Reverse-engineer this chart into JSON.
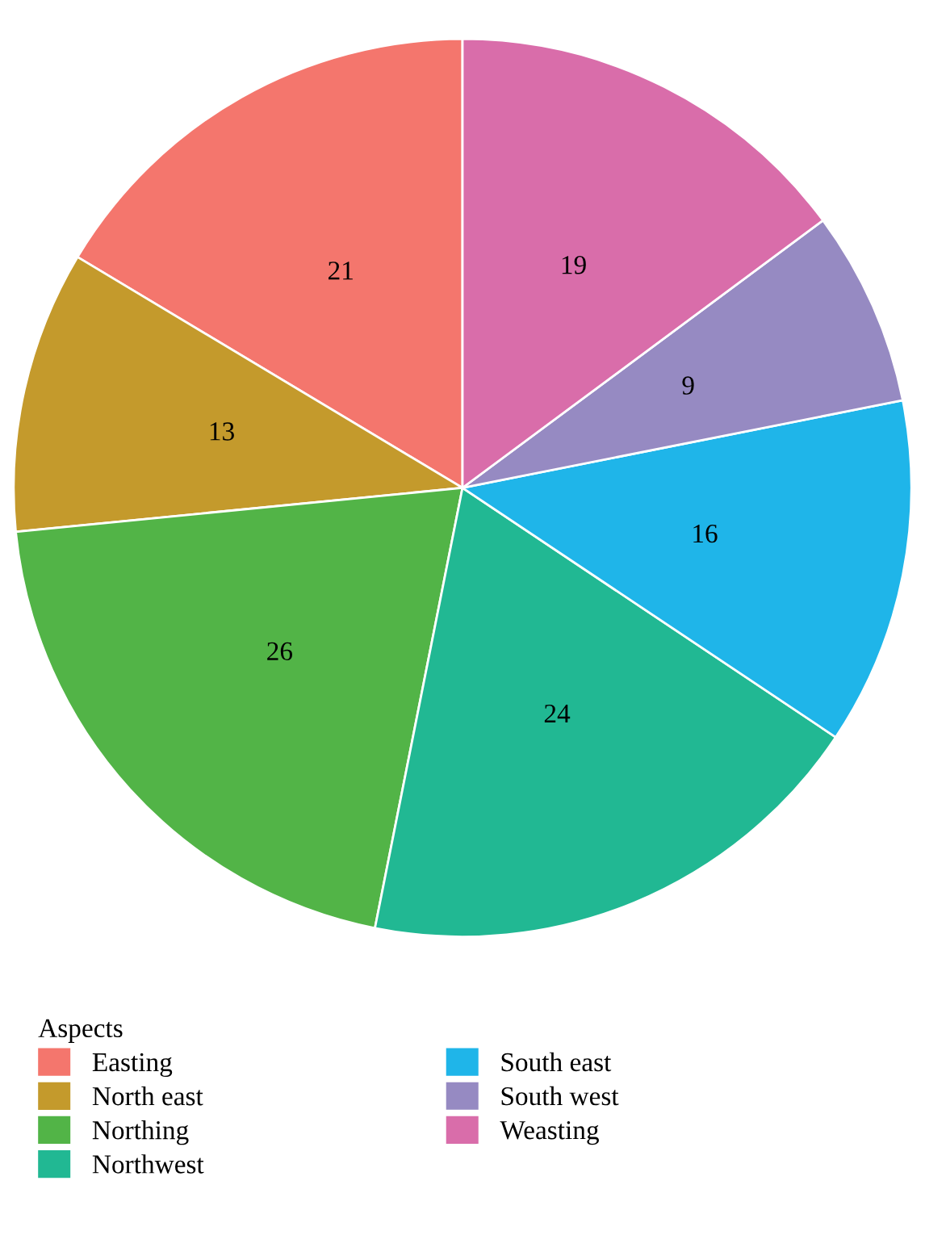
{
  "chart_data": {
    "type": "pie",
    "legend_title": "Aspects",
    "categories": [
      "Easting",
      "North east",
      "Northing",
      "Northwest",
      "South east",
      "South west",
      "Weasting"
    ],
    "values": [
      21,
      13,
      26,
      24,
      16,
      9,
      19
    ],
    "colors": [
      "#f4766d",
      "#c49a2c",
      "#52b447",
      "#21b893",
      "#1fb5e9",
      "#968ac2",
      "#d96daa"
    ],
    "data_labels": true,
    "legend": "bottom"
  }
}
